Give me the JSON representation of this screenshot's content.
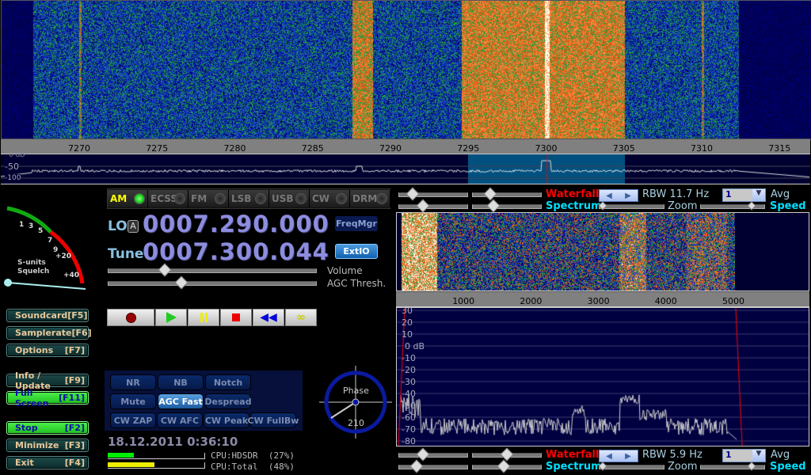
{
  "main_waterfall": {
    "freq_axis_khz": [
      "7270",
      "7275",
      "7280",
      "7285",
      "7290",
      "7295",
      "7300",
      "7305",
      "7310",
      "7315"
    ],
    "db_labels": [
      "0 dB",
      "-50",
      "-100"
    ],
    "passband_khz": [
      7295,
      7305
    ],
    "tuned_khz": 7300.044
  },
  "modes": [
    {
      "label": "AM",
      "active": true
    },
    {
      "label": "ECSS"
    },
    {
      "label": "FM"
    },
    {
      "label": "LSB"
    },
    {
      "label": "USB"
    },
    {
      "label": "CW"
    },
    {
      "label": "DRM"
    }
  ],
  "smeter": {
    "scale": [
      "1",
      "3",
      "5",
      "7",
      "9",
      "+20",
      "+40"
    ],
    "label1": "S-units",
    "label2": "Squelch"
  },
  "lo": {
    "label": "LO",
    "badge": "A",
    "value": "0007.290.000"
  },
  "tune": {
    "label": "Tune",
    "value": "0007.300.044"
  },
  "buttons": {
    "freqmgr": "FreqMgr",
    "extio": "ExtIO"
  },
  "sliders": {
    "volume": "Volume",
    "agc": "AGC Thresh.",
    "volume_level": 0.27,
    "agc_level": 0.35
  },
  "side_buttons": [
    {
      "label": "Soundcard",
      "key": "[F5]"
    },
    {
      "label": "Samplerate",
      "key": "[F6]"
    },
    {
      "label": "Options",
      "key": "[F7]"
    },
    {
      "label": "Info / Update",
      "key": "[F9]"
    },
    {
      "label": "Full Screen",
      "key": "[F11]",
      "active": true
    },
    {
      "label": "Stop",
      "key": "[F2]",
      "active": true
    },
    {
      "label": "Minimize",
      "key": "[F3]"
    },
    {
      "label": "Exit",
      "key": "[F4]"
    }
  ],
  "transport": [
    "record",
    "play",
    "pause",
    "stop",
    "rewind",
    "loop"
  ],
  "dsp": [
    {
      "label": "NR"
    },
    {
      "label": "NB"
    },
    {
      "label": "Notch"
    },
    {
      "label": "Mute"
    },
    {
      "label": "AGC Fast",
      "active": true
    },
    {
      "label": "Despread"
    },
    {
      "label": "CW ZAP"
    },
    {
      "label": "CW AFC"
    },
    {
      "label": "CW Peak"
    },
    {
      "label": "CW FullBw"
    }
  ],
  "phase": {
    "label": "Phase",
    "value": "210"
  },
  "datetime": "18.12.2011 0:36:10",
  "cpu": {
    "hdsdr": "CPU:HDSDR  (27%)",
    "total": "CPU:Total  (48%)",
    "hdsdr_pct": 27,
    "total_pct": 48
  },
  "top_controls": {
    "waterfall": "Waterfall",
    "rbw": "RBW 11.7 Hz",
    "avg_value": "1",
    "avg": "Avg",
    "spectrum": "Spectrum",
    "zoom": "Zoom",
    "speed": "Speed"
  },
  "bottom_controls": {
    "waterfall": "Waterfall",
    "rbw": "RBW  5.9 Hz",
    "avg_value": "1",
    "avg": "Avg",
    "spectrum": "Spectrum",
    "zoom": "Zoom",
    "speed": "Speed"
  },
  "audio": {
    "axis_hz": [
      "1000",
      "2000",
      "3000",
      "4000",
      "5000"
    ],
    "db_labels": [
      "30",
      "20",
      "10",
      "0 dB",
      "-10",
      "-20",
      "-30",
      "-40",
      "-50",
      "-60",
      "-70",
      "-80"
    ]
  },
  "colors": {
    "waterfall_label": "#ff0000",
    "spectrum_label": "#00e0ff",
    "passband": "#005080",
    "freq_digits": "#8c8ce0"
  }
}
